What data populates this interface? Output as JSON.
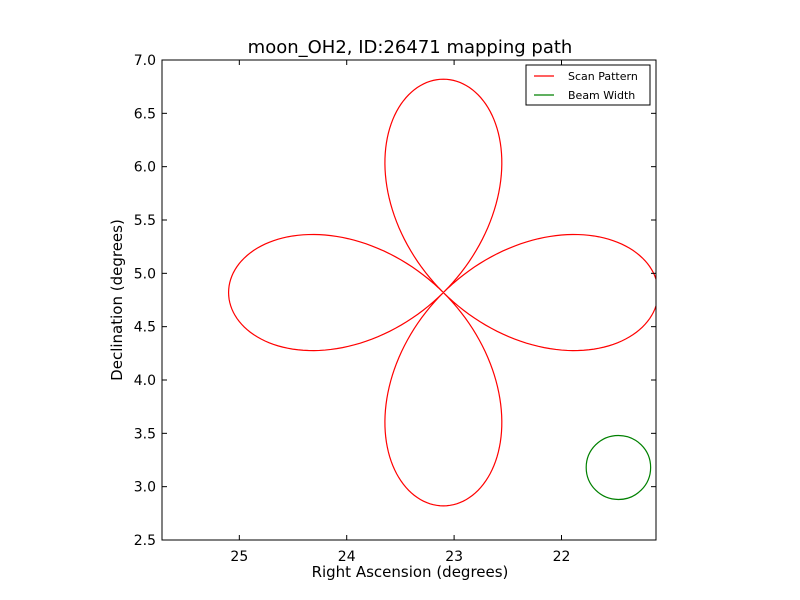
{
  "chart_data": {
    "type": "line",
    "title": "moon_OH2, ID:26471 mapping path",
    "xlabel": "Right Ascension (degrees)",
    "ylabel": "Declination (degrees)",
    "xlim": [
      25.72,
      21.12
    ],
    "ylim": [
      2.5,
      7.0
    ],
    "x_ticks": [
      25,
      24,
      23,
      22
    ],
    "x_tick_labels": [
      "25",
      "24",
      "23",
      "22"
    ],
    "y_ticks": [
      2.5,
      3.0,
      3.5,
      4.0,
      4.5,
      5.0,
      5.5,
      6.0,
      6.5,
      7.0
    ],
    "y_tick_labels": [
      "2.5",
      "3.0",
      "3.5",
      "4.0",
      "4.5",
      "5.0",
      "5.5",
      "6.0",
      "6.5",
      "7.0"
    ],
    "grid": false,
    "legend_position": "top-right",
    "series": [
      {
        "name": "Scan Pattern",
        "color": "#ff0000",
        "shape": "four-petal rose",
        "center": [
          23.1,
          4.82
        ],
        "petal_reach_ra": 2.0,
        "petal_reach_dec": 2.0
      },
      {
        "name": "Beam Width",
        "color": "#008000",
        "shape": "circle",
        "center": [
          21.47,
          3.18
        ],
        "radius_ra": 0.3,
        "radius_dec": 0.3
      }
    ]
  }
}
